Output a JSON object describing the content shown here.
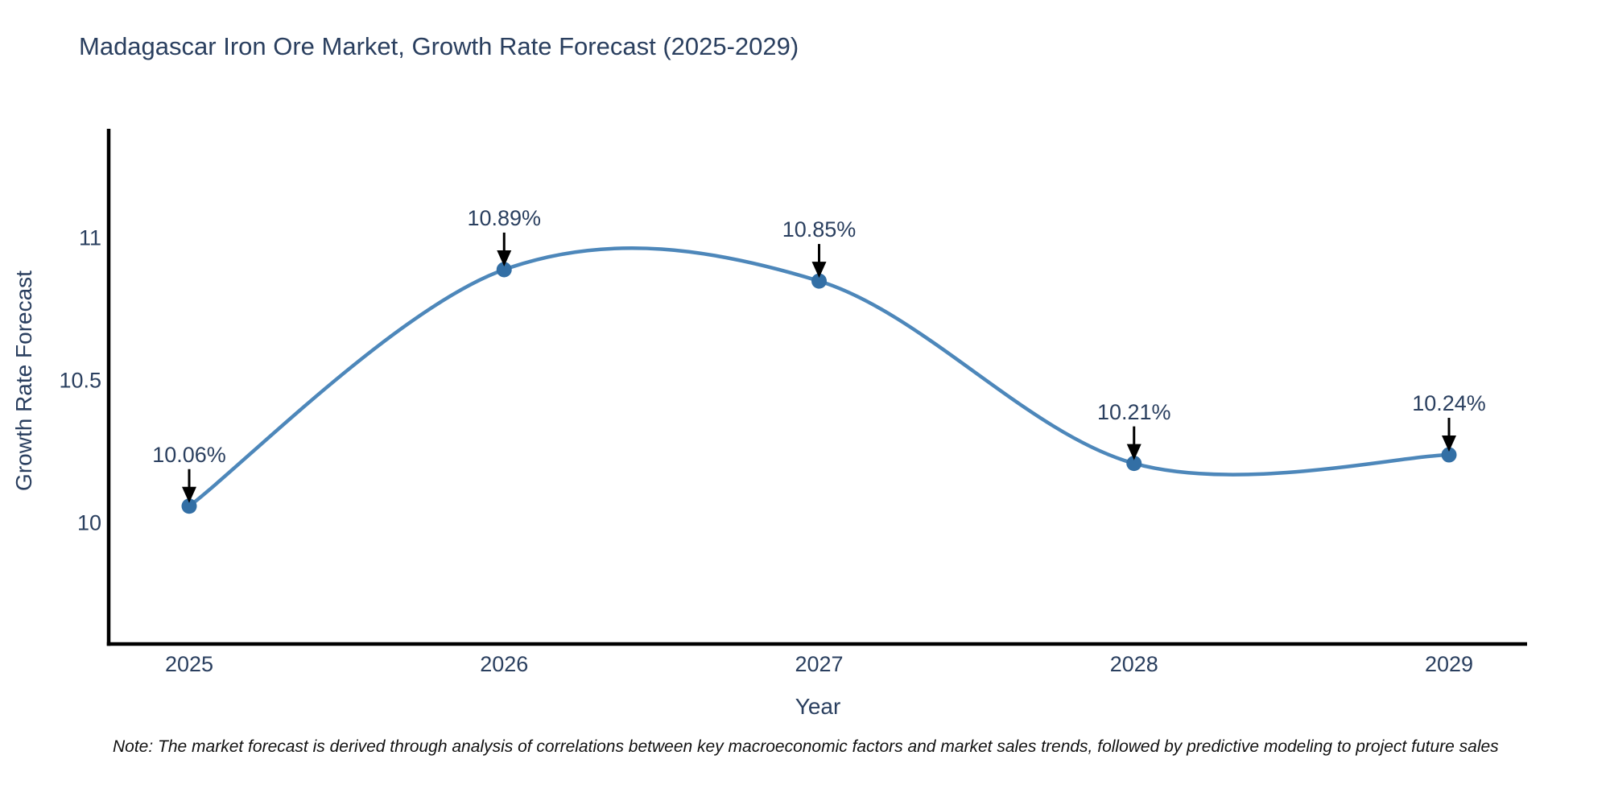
{
  "chart": {
    "note": "Note: The market forecast is derived through analysis of correlations between key macroeconomic factors and market sales trends, followed by predictive modeling to project future sales"
  },
  "chart_data": {
    "type": "line",
    "title": "Madagascar Iron Ore Market, Growth Rate Forecast (2025-2029)",
    "xlabel": "Year",
    "ylabel": "Growth Rate Forecast",
    "x": [
      2025,
      2026,
      2027,
      2028,
      2029
    ],
    "y": [
      10.06,
      10.89,
      10.85,
      10.21,
      10.24
    ],
    "point_labels": [
      "10.06%",
      "10.89%",
      "10.85%",
      "10.21%",
      "10.24%"
    ],
    "x_ticks": [
      "2025",
      "2026",
      "2027",
      "2028",
      "2029"
    ],
    "y_ticks": [
      "10",
      "10.5",
      "11"
    ],
    "y_tick_values": [
      10,
      10.5,
      11
    ],
    "ylim": [
      9.57,
      11.38
    ],
    "grid": false,
    "legend": false,
    "curve": "spline",
    "colors": {
      "line": "#4d87ba",
      "marker": "#336fa5",
      "axis": "#000000",
      "text": "#2a3f5f",
      "arrow": "#000000"
    }
  }
}
